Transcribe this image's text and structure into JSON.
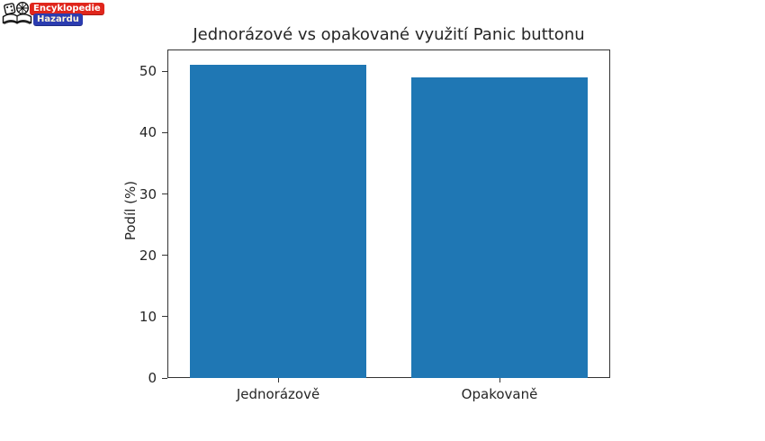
{
  "logo": {
    "name": "Encyklopedie Hazardu",
    "line1": "Encyklopedie",
    "line2": "Hazardu",
    "badge1_color": "#e0261c",
    "badge2_color": "#2b3cb0",
    "icon": "open-book-dice-clock"
  },
  "chart_data": {
    "type": "bar",
    "title": "Jednorázové vs opakované využití Panic buttonu",
    "categories": [
      "Jednorázově",
      "Opakovaně"
    ],
    "values": [
      51,
      49
    ],
    "xlabel": "",
    "ylabel": "Podíl (%)",
    "ylim": [
      0,
      53.55
    ],
    "yticks": [
      0,
      10,
      20,
      30,
      40,
      50
    ],
    "bar_color": "#1f77b4",
    "bar_width_fraction": 0.8,
    "grid": false,
    "legend": false,
    "background": "#ffffff"
  }
}
